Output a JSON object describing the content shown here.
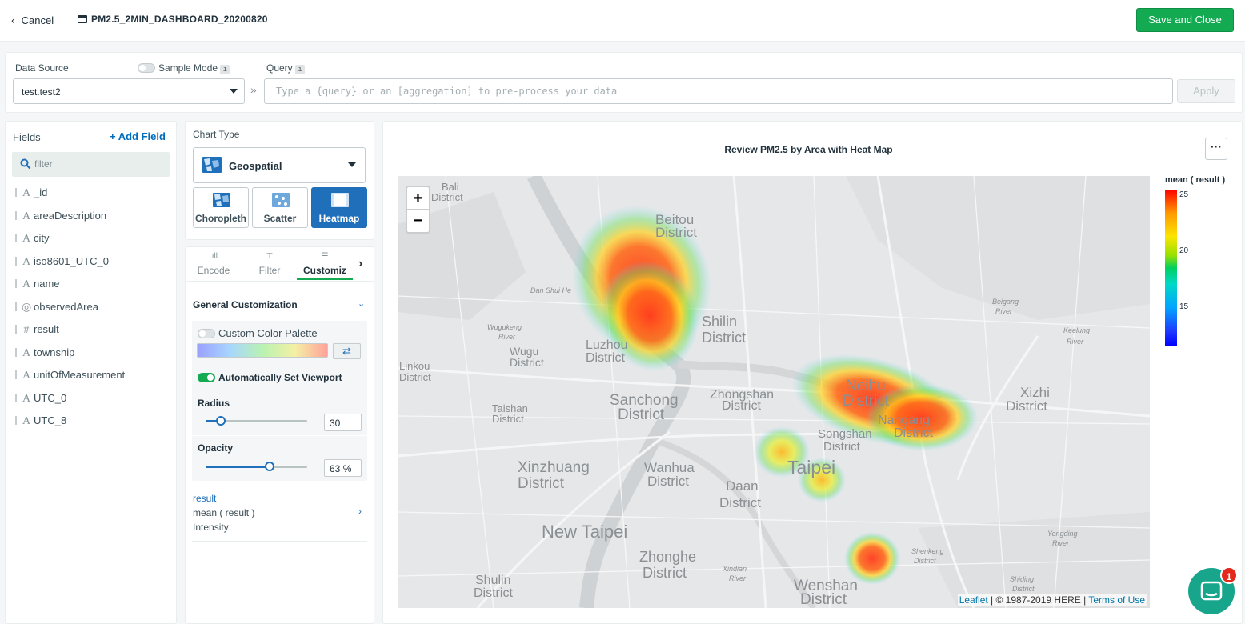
{
  "topbar": {
    "cancel_label": "Cancel",
    "doc_title": "PM2.5_2MIN_DASHBOARD_20200820",
    "save_label": "Save and Close"
  },
  "datasource": {
    "label": "Data Source",
    "sample_mode_label": "Sample Mode",
    "sample_mode_on": false,
    "query_label": "Query",
    "info_glyph": "i",
    "selected": "test.test2",
    "chevron": "»",
    "query_value": "",
    "query_placeholder": "Type a {query} or an [aggregation] to pre-process your data",
    "apply_label": "Apply"
  },
  "fields": {
    "title": "Fields",
    "add_label": "+ Add Field",
    "filter_value": "",
    "filter_placeholder": "filter",
    "items": [
      {
        "type": "A",
        "name": "_id"
      },
      {
        "type": "A",
        "name": "areaDescription"
      },
      {
        "type": "A",
        "name": "city"
      },
      {
        "type": "A",
        "name": "iso8601_UTC_0"
      },
      {
        "type": "A",
        "name": "name"
      },
      {
        "type": "geo",
        "name": "observedArea"
      },
      {
        "type": "#",
        "name": "result"
      },
      {
        "type": "A",
        "name": "township"
      },
      {
        "type": "A",
        "name": "unitOfMeasurement"
      },
      {
        "type": "A",
        "name": "UTC_0"
      },
      {
        "type": "A",
        "name": "UTC_8"
      }
    ]
  },
  "chart_type": {
    "label": "Chart Type",
    "selected": "Geospatial",
    "subtypes": [
      {
        "label": "Choropleth",
        "active": false
      },
      {
        "label": "Scatter",
        "active": false
      },
      {
        "label": "Heatmap",
        "active": true
      }
    ]
  },
  "encode": {
    "tabs": [
      {
        "label": "Encode",
        "icon": ".ıll"
      },
      {
        "label": "Filter",
        "icon": "⊤"
      },
      {
        "label": "Customiz",
        "icon": "☰"
      }
    ],
    "active_tab": "Customiz",
    "next_glyph": "›",
    "section_title": "General Customization",
    "section_chevron": "⌄",
    "custom_palette_label": "Custom Color Palette",
    "custom_palette_on": false,
    "swap_glyph": "⇄",
    "auto_viewport_label": "Automatically Set Viewport",
    "auto_viewport_on": true,
    "radius_label": "Radius",
    "radius_value": "30",
    "radius_fraction": 0.15,
    "opacity_label": "Opacity",
    "opacity_value": "63",
    "opacity_unit": "%",
    "opacity_fraction": 0.63,
    "result_field": "result",
    "result_agg": "mean ( result )",
    "result_channel": "Intensity",
    "result_chevron": "›"
  },
  "chart": {
    "title": "Review PM2.5 by Area with Heat Map",
    "more_label": "···",
    "zoom_in": "+",
    "zoom_out": "−",
    "attribution_leaflet": "Leaflet",
    "attribution_middle": " | © 1987-2019 HERE | ",
    "attribution_terms": "Terms of Use",
    "legend_title": "mean ( result )",
    "legend_ticks": [
      "25",
      "20",
      "15"
    ],
    "map_labels": [
      "Bali",
      "District",
      "Beitou",
      "District",
      "Shilin",
      "District",
      "Luzhou",
      "District",
      "Wugu",
      "District",
      "Linkou",
      "District",
      "Sanchong",
      "District",
      "Taishan",
      "District",
      "Zhongshan",
      "District",
      "Neihu",
      "District",
      "Nangang",
      "District",
      "Songshan",
      "District",
      "Taipei",
      "Xizhi",
      "District",
      "Xinzhuang",
      "District",
      "Wanhua",
      "District",
      "Daan",
      "District",
      "New Taipei",
      "Zhonghe",
      "District",
      "Shulin",
      "District",
      "Wenshan",
      "District",
      "Dan Shui He",
      "Keelung",
      "River",
      "Beigang",
      "River",
      "Wugukeng",
      "River",
      "Shenkeng",
      "District",
      "Yongding",
      "River",
      "Shiding",
      "District",
      "Xindian",
      "River"
    ]
  },
  "chat": {
    "badge": "1"
  }
}
